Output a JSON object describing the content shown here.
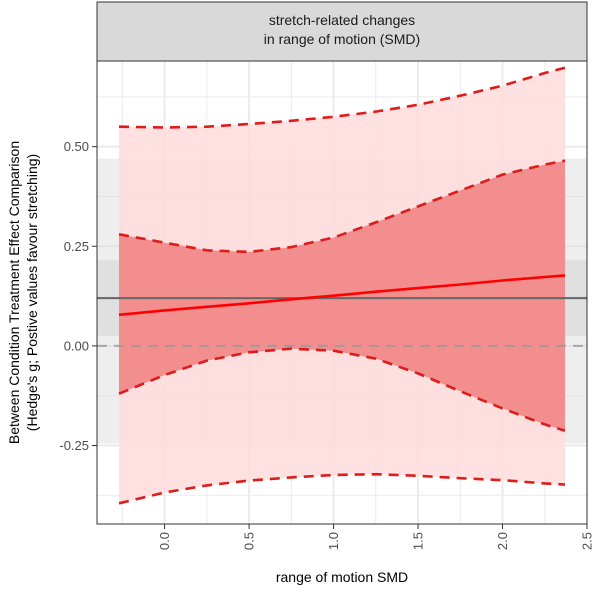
{
  "chart_data": {
    "type": "line",
    "strip_title_lines": [
      "stretch-related changes",
      "in range of motion (SMD)"
    ],
    "xlabel": "range of motion SMD",
    "ylabel_lines": [
      "Between Condition Treatment Effect Comparison",
      "(Hedge's g; Postive values favour stretching)"
    ],
    "xlim": [
      -0.4,
      2.5
    ],
    "ylim": [
      -0.447,
      0.715
    ],
    "x_ticks": [
      0.0,
      0.5,
      1.0,
      1.5,
      2.0,
      2.5
    ],
    "x_tick_labels": [
      "0.0",
      "0.5",
      "1.0",
      "1.5",
      "2.0",
      "2.5"
    ],
    "y_ticks": [
      -0.25,
      0.0,
      0.25,
      0.5
    ],
    "y_tick_labels": [
      "-0.25",
      "0.00",
      "0.25",
      "0.50"
    ],
    "grid": true,
    "pooled_estimate": {
      "estimate": 0.12,
      "ci": [
        0.025,
        0.215
      ],
      "prediction_interval": [
        -0.245,
        0.47
      ]
    },
    "reference_line_y": 0.0,
    "x": [
      -0.27,
      0.0,
      0.25,
      0.5,
      0.75,
      1.0,
      1.25,
      1.5,
      1.75,
      2.0,
      2.25,
      2.37
    ],
    "series": [
      {
        "role": "fit",
        "values": [
          0.078,
          0.089,
          0.098,
          0.107,
          0.117,
          0.126,
          0.136,
          0.145,
          0.154,
          0.164,
          0.173,
          0.177
        ]
      },
      {
        "role": "ci_lower",
        "values": [
          -0.12,
          -0.073,
          -0.037,
          -0.016,
          -0.007,
          -0.012,
          -0.032,
          -0.069,
          -0.114,
          -0.157,
          -0.197,
          -0.213
        ]
      },
      {
        "role": "ci_upper",
        "values": [
          0.28,
          0.259,
          0.24,
          0.236,
          0.248,
          0.272,
          0.31,
          0.35,
          0.39,
          0.43,
          0.455,
          0.465
        ]
      },
      {
        "role": "pi_lower",
        "values": [
          -0.395,
          -0.368,
          -0.35,
          -0.338,
          -0.33,
          -0.324,
          -0.322,
          -0.326,
          -0.332,
          -0.337,
          -0.345,
          -0.348
        ]
      },
      {
        "role": "pi_upper",
        "values": [
          0.55,
          0.548,
          0.55,
          0.557,
          0.565,
          0.575,
          0.588,
          0.605,
          0.628,
          0.653,
          0.685,
          0.698
        ]
      }
    ],
    "colors": {
      "fit": "#ff0000",
      "ci_band": "#f08080",
      "pi_band": "#ffdcdc",
      "dashed": "#dd1c1c",
      "pooled_line": "#666666",
      "pooled_band": "#d9d9d9",
      "zero_line": "#999999",
      "grid": "#ebebeb",
      "strip_bg": "#d9d9d9"
    }
  }
}
